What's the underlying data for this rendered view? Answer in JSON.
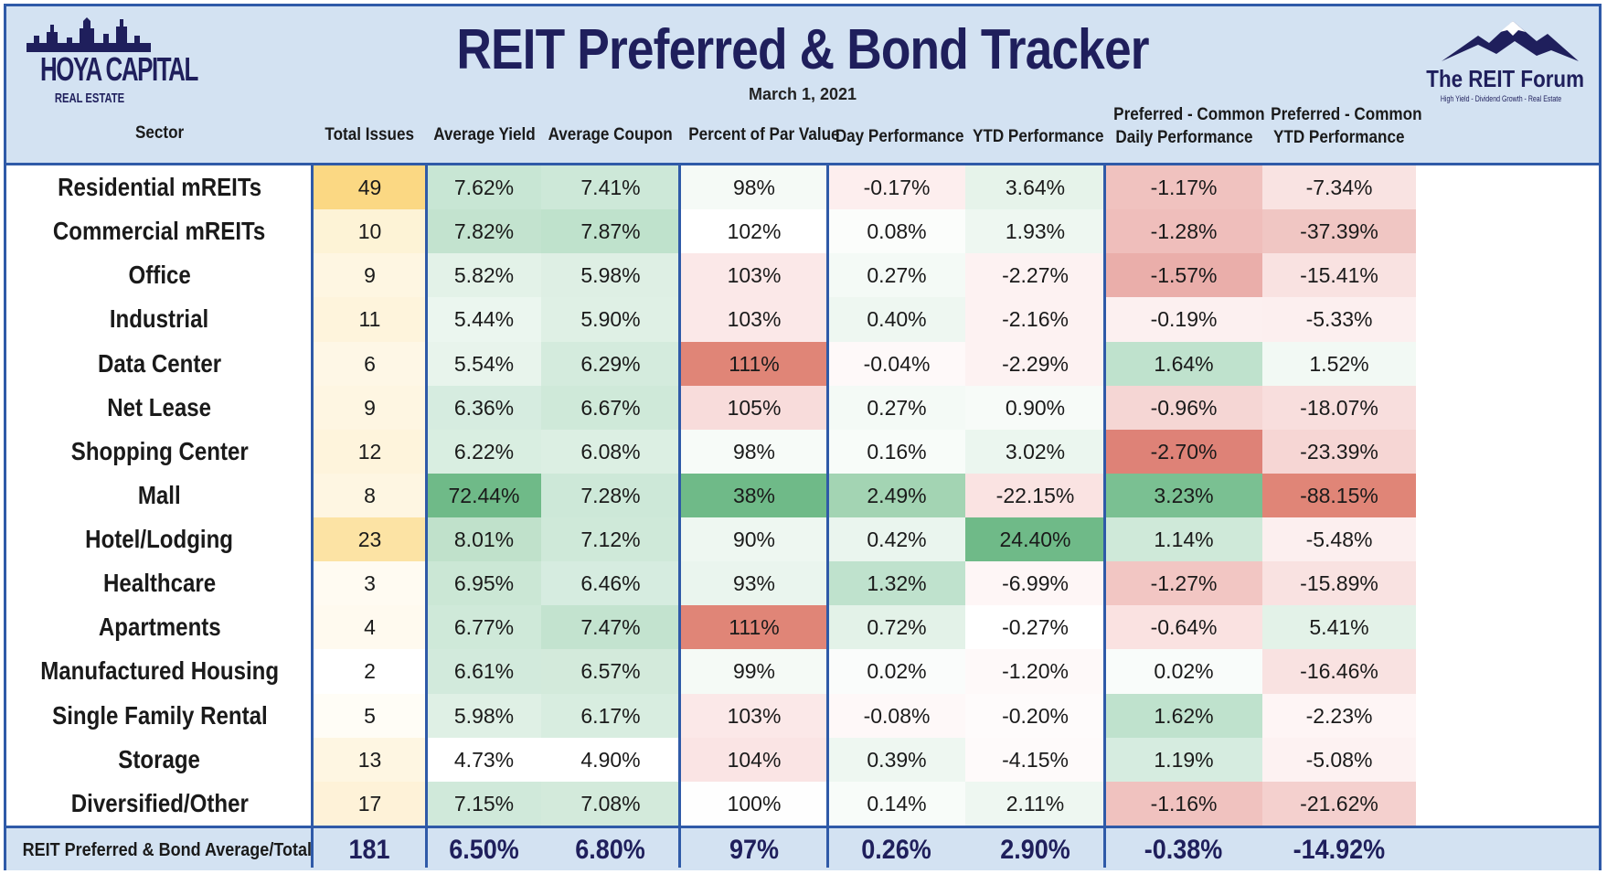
{
  "title": "REIT Preferred & Bond Tracker",
  "date": "March 1, 2021",
  "logos": {
    "left_name": "HOYA CAPITAL",
    "left_sub": "REAL ESTATE",
    "right_name": "The REIT Forum",
    "right_tag": "High Yield - Dividend Growth - Real Estate"
  },
  "columns": [
    {
      "key": "sector",
      "label": "Sector"
    },
    {
      "key": "issues",
      "label": "Total Issues"
    },
    {
      "key": "yield",
      "label": "Average Yield"
    },
    {
      "key": "coupon",
      "label": "Average Coupon"
    },
    {
      "key": "par",
      "label": "Percent of Par Value"
    },
    {
      "key": "day",
      "label": "Day Performance"
    },
    {
      "key": "ytd",
      "label": "YTD Performance"
    },
    {
      "key": "pc_day",
      "label_l1": "Preferred - Common",
      "label_l2": "Daily Performance"
    },
    {
      "key": "pc_ytd",
      "label_l1": "Preferred - Common",
      "label_l2": "YTD Performance"
    }
  ],
  "chart_data": {
    "type": "table",
    "title": "REIT Preferred & Bond Tracker",
    "rows": [
      {
        "sector": "Residential mREITs",
        "issues": "49",
        "yield": "7.62%",
        "coupon": "7.41%",
        "par": "98%",
        "day": "-0.17%",
        "ytd": "3.64%",
        "pc_day": "-1.17%",
        "pc_ytd": "-7.34%"
      },
      {
        "sector": "Commercial mREITs",
        "issues": "10",
        "yield": "7.82%",
        "coupon": "7.87%",
        "par": "102%",
        "day": "0.08%",
        "ytd": "1.93%",
        "pc_day": "-1.28%",
        "pc_ytd": "-37.39%"
      },
      {
        "sector": "Office",
        "issues": "9",
        "yield": "5.82%",
        "coupon": "5.98%",
        "par": "103%",
        "day": "0.27%",
        "ytd": "-2.27%",
        "pc_day": "-1.57%",
        "pc_ytd": "-15.41%"
      },
      {
        "sector": "Industrial",
        "issues": "11",
        "yield": "5.44%",
        "coupon": "5.90%",
        "par": "103%",
        "day": "0.40%",
        "ytd": "-2.16%",
        "pc_day": "-0.19%",
        "pc_ytd": "-5.33%"
      },
      {
        "sector": "Data Center",
        "issues": "6",
        "yield": "5.54%",
        "coupon": "6.29%",
        "par": "111%",
        "day": "-0.04%",
        "ytd": "-2.29%",
        "pc_day": "1.64%",
        "pc_ytd": "1.52%"
      },
      {
        "sector": "Net Lease",
        "issues": "9",
        "yield": "6.36%",
        "coupon": "6.67%",
        "par": "105%",
        "day": "0.27%",
        "ytd": "0.90%",
        "pc_day": "-0.96%",
        "pc_ytd": "-18.07%"
      },
      {
        "sector": "Shopping Center",
        "issues": "12",
        "yield": "6.22%",
        "coupon": "6.08%",
        "par": "98%",
        "day": "0.16%",
        "ytd": "3.02%",
        "pc_day": "-2.70%",
        "pc_ytd": "-23.39%"
      },
      {
        "sector": "Mall",
        "issues": "8",
        "yield": "72.44%",
        "coupon": "7.28%",
        "par": "38%",
        "day": "2.49%",
        "ytd": "-22.15%",
        "pc_day": "3.23%",
        "pc_ytd": "-88.15%"
      },
      {
        "sector": "Hotel/Lodging",
        "issues": "23",
        "yield": "8.01%",
        "coupon": "7.12%",
        "par": "90%",
        "day": "0.42%",
        "ytd": "24.40%",
        "pc_day": "1.14%",
        "pc_ytd": "-5.48%"
      },
      {
        "sector": "Healthcare",
        "issues": "3",
        "yield": "6.95%",
        "coupon": "6.46%",
        "par": "93%",
        "day": "1.32%",
        "ytd": "-6.99%",
        "pc_day": "-1.27%",
        "pc_ytd": "-15.89%"
      },
      {
        "sector": "Apartments",
        "issues": "4",
        "yield": "6.77%",
        "coupon": "7.47%",
        "par": "111%",
        "day": "0.72%",
        "ytd": "-0.27%",
        "pc_day": "-0.64%",
        "pc_ytd": "5.41%"
      },
      {
        "sector": "Manufactured Housing",
        "issues": "2",
        "yield": "6.61%",
        "coupon": "6.57%",
        "par": "99%",
        "day": "0.02%",
        "ytd": "-1.20%",
        "pc_day": "0.02%",
        "pc_ytd": "-16.46%"
      },
      {
        "sector": "Single Family Rental",
        "issues": "5",
        "yield": "5.98%",
        "coupon": "6.17%",
        "par": "103%",
        "day": "-0.08%",
        "ytd": "-0.20%",
        "pc_day": "1.62%",
        "pc_ytd": "-2.23%"
      },
      {
        "sector": "Storage",
        "issues": "13",
        "yield": "4.73%",
        "coupon": "4.90%",
        "par": "104%",
        "day": "0.39%",
        "ytd": "-4.15%",
        "pc_day": "1.19%",
        "pc_ytd": "-5.08%"
      },
      {
        "sector": "Diversified/Other",
        "issues": "17",
        "yield": "7.15%",
        "coupon": "7.08%",
        "par": "100%",
        "day": "0.14%",
        "ytd": "2.11%",
        "pc_day": "-1.16%",
        "pc_ytd": "-21.62%"
      }
    ],
    "footer": {
      "sector": "REIT Preferred & Bond Average/Total",
      "issues": "181",
      "yield": "6.50%",
      "coupon": "6.80%",
      "par": "97%",
      "day": "0.26%",
      "ytd": "2.90%",
      "pc_day": "-0.38%",
      "pc_ytd": "-14.92%"
    },
    "cell_colors": [
      [
        "#fbd883",
        "#c8e6d4",
        "#cde8d8",
        "#f5faf6",
        "#fdeeee",
        "#e6f3ea",
        "#f0c2bf",
        "#f9e3e2"
      ],
      [
        "#fdf3d6",
        "#c3e3cf",
        "#bfe2cc",
        "#ffffff",
        "#fbfdfb",
        "#eef7f1",
        "#efbebb",
        "#f0c6c3"
      ],
      [
        "#fef6e2",
        "#e3f2e8",
        "#deefe4",
        "#fbe8e8",
        "#f4faf6",
        "#fdf2f2",
        "#eaaeaa",
        "#f9e2e1"
      ],
      [
        "#fef4dc",
        "#ebf6ef",
        "#dff0e5",
        "#fbe8e8",
        "#eef7f1",
        "#fdf2f2",
        "#fcf0f0",
        "#fcefef"
      ],
      [
        "#fef7e6",
        "#e8f4ec",
        "#d4ebdd",
        "#e08577",
        "#fef9f9",
        "#fdf2f2",
        "#bfe2cd",
        "#f2f9f4"
      ],
      [
        "#fef6e2",
        "#d6ece0",
        "#cfe9d9",
        "#f8dcdb",
        "#f4faf6",
        "#f7fbf8",
        "#f5d6d4",
        "#f8dedd"
      ],
      [
        "#fef4dc",
        "#d9eee1",
        "#dcefe3",
        "#f7fbf8",
        "#f8fcf9",
        "#ebf6ef",
        "#de8277",
        "#f6d6d4"
      ],
      [
        "#fef6e2",
        "#6fba88",
        "#cde8d8",
        "#6fba88",
        "#a3d4b3",
        "#fae3e2",
        "#7ac092",
        "#e08577"
      ],
      [
        "#fce3a4",
        "#c0e1cb",
        "#cfe9d9",
        "#eef7f1",
        "#eaf5ee",
        "#6fba88",
        "#cfe9d9",
        "#fcefef"
      ],
      [
        "#fffbf2",
        "#cbe7d5",
        "#d6ece0",
        "#eaf5ee",
        "#bfe2cd",
        "#fef6f6",
        "#f2c6c3",
        "#f9e2e1"
      ],
      [
        "#fffaef",
        "#cfe9d9",
        "#c3e3cf",
        "#e08577",
        "#e3f2e8",
        "#ffffff",
        "#fae2e1",
        "#e3f2e8"
      ],
      [
        "#ffffff",
        "#d2eadc",
        "#d3eadb",
        "#f5faf6",
        "#fafcfb",
        "#fef9f9",
        "#f9fcfa",
        "#f9e2e1"
      ],
      [
        "#fffdf6",
        "#dff0e5",
        "#d8ede0",
        "#fbe8e8",
        "#fef8f8",
        "#fefbfb",
        "#bfe2cd",
        "#fef5f5"
      ],
      [
        "#fef6e2",
        "#ffffff",
        "#ffffff",
        "#fae4e4",
        "#eef7f1",
        "#fefafa",
        "#d6ece0",
        "#fdf2f2"
      ],
      [
        "#fef2d8",
        "#d0e9da",
        "#d3eadb",
        "#fefefe",
        "#f8fcf9",
        "#eef7f1",
        "#f0c2bf",
        "#f4d0ce"
      ]
    ]
  }
}
